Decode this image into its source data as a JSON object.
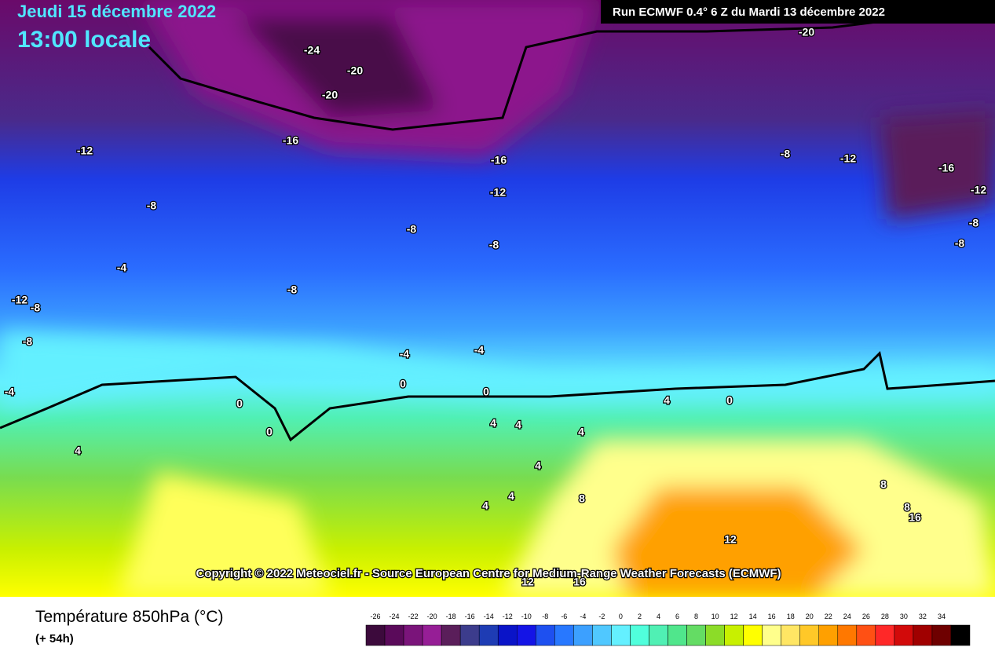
{
  "header": {
    "date": "Jeudi 15 décembre 2022",
    "time": "13:00 locale",
    "run": "Run ECMWF 0.4° 6 Z du Mardi 13 décembre 2022"
  },
  "copyright": "Copyright © 2022 Meteociel.fr - Source European Centre for Medium-Range Weather Forecasts (ECMWF)",
  "contour_labels": [
    "-20",
    "-24",
    "-20",
    "-20",
    "-16",
    "-12",
    "-16",
    "-8",
    "-12",
    "-16",
    "-12",
    "-8",
    "-12",
    "-8",
    "-8",
    "-8",
    "-8",
    "-4",
    "-8",
    "-12",
    "-8",
    "-8",
    "-4",
    "-4",
    "0",
    "0",
    "-4",
    "0",
    "0",
    "4",
    "4",
    "4",
    "4",
    "0",
    "4",
    "4",
    "4",
    "4",
    "8",
    "8",
    "8",
    "16",
    "12",
    "12",
    "16"
  ],
  "footer": {
    "title": "Température 850hPa (°C)",
    "subtitle": "(+ 54h)"
  },
  "legend": {
    "labels": [
      "-26",
      "-24",
      "-22",
      "-20",
      "-18",
      "-16",
      "-14",
      "-12",
      "-10",
      "-8",
      "-6",
      "-4",
      "-2",
      "0",
      "2",
      "4",
      "6",
      "8",
      "10",
      "12",
      "14",
      "16",
      "18",
      "20",
      "22",
      "24",
      "26",
      "28",
      "30",
      "32",
      "34"
    ],
    "colors": [
      "#3c0a3c",
      "#5a0a5a",
      "#7a147a",
      "#961e96",
      "#5a1e5a",
      "#3c3c8c",
      "#1e3cb4",
      "#0a14c8",
      "#1414e6",
      "#1e50f0",
      "#2878ff",
      "#3ca0ff",
      "#50c8ff",
      "#64f0ff",
      "#50ffdc",
      "#50f0b4",
      "#50e68c",
      "#64dc64",
      "#8cdc28",
      "#c8f000",
      "#ffff00",
      "#ffff8c",
      "#ffe664",
      "#ffc828",
      "#ffa000",
      "#ff7800",
      "#ff5014",
      "#ff2828",
      "#d20a0a",
      "#a00000",
      "#6e0000",
      "#000000"
    ]
  }
}
